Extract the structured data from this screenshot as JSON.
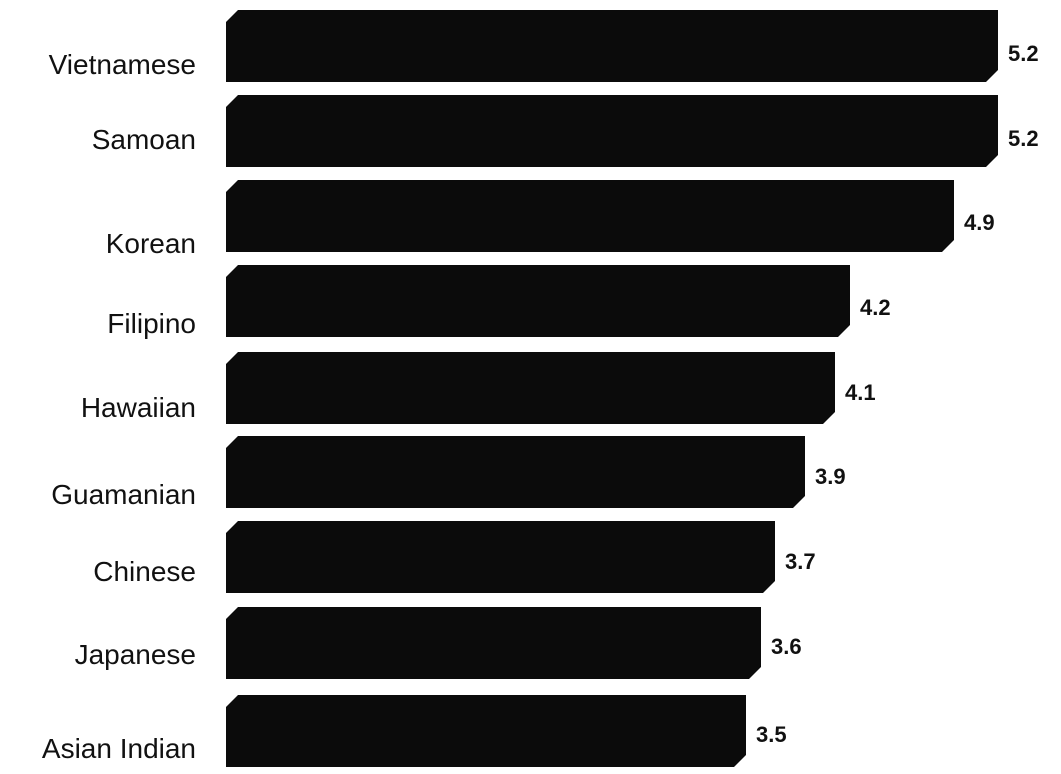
{
  "chart_data": {
    "type": "bar",
    "orientation": "horizontal",
    "categories": [
      "Vietnamese",
      "Samoan",
      "Korean",
      "Filipino",
      "Hawaiian",
      "Guamanian",
      "Chinese",
      "Japanese",
      "Asian Indian"
    ],
    "values": [
      5.2,
      5.2,
      4.9,
      4.2,
      4.1,
      3.9,
      3.7,
      3.6,
      3.5
    ],
    "value_labels": [
      "5.2",
      "5.2",
      "4.9",
      "4.2",
      "4.1",
      "3.9",
      "3.7",
      "3.6",
      "3.5"
    ],
    "title": "",
    "xlabel": "",
    "ylabel": "",
    "grid": false,
    "legend": "none",
    "colors": {
      "bar": "#0b0b0b",
      "text": "#111111",
      "background": "#ffffff"
    }
  }
}
